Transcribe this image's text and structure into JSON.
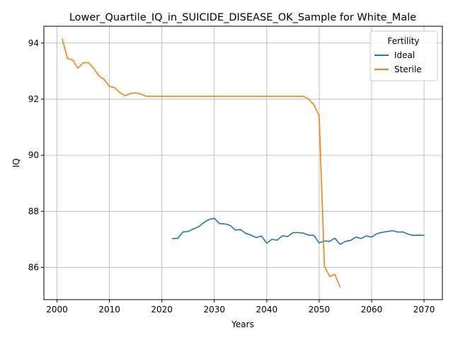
{
  "chart_data": {
    "type": "line",
    "title": "Lower_Quartile_IQ_in_SUICIDE_DISEASE_OK_Sample for White_Male",
    "xlabel": "Years",
    "ylabel": "IQ",
    "xlim": [
      1997.5,
      2073.5
    ],
    "ylim": [
      84.85,
      94.6
    ],
    "xticks": [
      2000,
      2010,
      2020,
      2030,
      2040,
      2050,
      2060,
      2070
    ],
    "yticks": [
      86,
      88,
      90,
      92,
      94
    ],
    "grid": true,
    "legend": {
      "title": "Fertility",
      "position": "top-right"
    },
    "series": [
      {
        "name": "Ideal",
        "color": "#1f77b4",
        "x": [
          2022,
          2023,
          2024,
          2025,
          2026,
          2027,
          2028,
          2029,
          2030,
          2031,
          2032,
          2033,
          2034,
          2035,
          2036,
          2037,
          2038,
          2039,
          2040,
          2041,
          2042,
          2043,
          2044,
          2045,
          2046,
          2047,
          2048,
          2049,
          2050,
          2051,
          2052,
          2053,
          2054,
          2055,
          2056,
          2057,
          2058,
          2059,
          2060,
          2061,
          2062,
          2063,
          2064,
          2065,
          2066,
          2067,
          2068,
          2069,
          2070
        ],
        "y": [
          87.03,
          87.03,
          87.26,
          87.28,
          87.37,
          87.45,
          87.6,
          87.71,
          87.75,
          87.56,
          87.55,
          87.5,
          87.33,
          87.35,
          87.21,
          87.15,
          87.06,
          87.12,
          86.86,
          87.0,
          86.97,
          87.13,
          87.1,
          87.24,
          87.24,
          87.22,
          87.15,
          87.14,
          86.87,
          86.94,
          86.93,
          87.04,
          86.82,
          86.93,
          86.96,
          87.08,
          87.03,
          87.12,
          87.08,
          87.2,
          87.25,
          87.28,
          87.31,
          87.26,
          87.26,
          87.18,
          87.14,
          87.15,
          87.14
        ]
      },
      {
        "name": "Sterile",
        "color": "#ff7f0e",
        "x": [
          2001,
          2002,
          2003,
          2004,
          2005,
          2006,
          2007,
          2008,
          2009,
          2010,
          2011,
          2012,
          2013,
          2014,
          2015,
          2016,
          2017,
          2018,
          2019,
          2020,
          2021,
          2022,
          2023,
          2024,
          2025,
          2026,
          2027,
          2028,
          2029,
          2030,
          2031,
          2032,
          2033,
          2034,
          2035,
          2036,
          2037,
          2038,
          2039,
          2040,
          2041,
          2042,
          2043,
          2044,
          2045,
          2046,
          2047,
          2048,
          2049,
          2050,
          2051,
          2052,
          2053,
          2054
        ],
        "y": [
          94.15,
          93.45,
          93.4,
          93.1,
          93.3,
          93.3,
          93.1,
          92.83,
          92.7,
          92.45,
          92.41,
          92.23,
          92.12,
          92.2,
          92.22,
          92.18,
          92.1,
          92.1,
          92.1,
          92.1,
          92.1,
          92.1,
          92.1,
          92.1,
          92.1,
          92.1,
          92.1,
          92.1,
          92.1,
          92.1,
          92.1,
          92.1,
          92.1,
          92.1,
          92.1,
          92.1,
          92.1,
          92.1,
          92.1,
          92.1,
          92.1,
          92.1,
          92.1,
          92.1,
          92.1,
          92.1,
          92.1,
          92.0,
          91.8,
          91.4,
          86.05,
          85.68,
          85.75,
          85.3
        ]
      }
    ]
  }
}
